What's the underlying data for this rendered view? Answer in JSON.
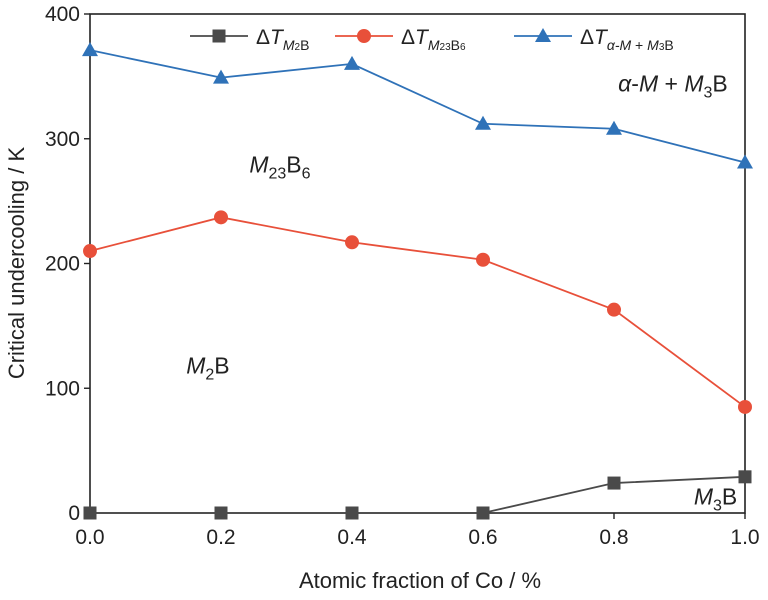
{
  "chart_data": {
    "type": "line",
    "xlabel": "Atomic fraction of Co / %",
    "ylabel": "Critical undercooling / K",
    "xlim": [
      0.0,
      1.0
    ],
    "ylim": [
      0,
      400
    ],
    "x_ticks": [
      "0.0",
      "0.2",
      "0.4",
      "0.6",
      "0.8",
      "1.0"
    ],
    "y_ticks": [
      "0",
      "100",
      "200",
      "300",
      "400"
    ],
    "grid": false,
    "legend_position": "top",
    "x": [
      0.0,
      0.2,
      0.4,
      0.6,
      0.8,
      1.0
    ],
    "series": [
      {
        "name": "ΔT_M2B",
        "legend": {
          "main": "ΔT",
          "sub": [
            {
              "t": "M",
              "italic": true
            },
            {
              "t": "2",
              "small": true
            },
            {
              "t": "B"
            }
          ]
        },
        "color": "#4a4a4a",
        "marker": "square",
        "values": [
          0,
          0,
          0,
          0,
          24,
          29
        ]
      },
      {
        "name": "ΔT_M23B6",
        "legend": {
          "main": "ΔT",
          "sub": [
            {
              "t": "M",
              "italic": true
            },
            {
              "t": "23",
              "small": true
            },
            {
              "t": "B"
            },
            {
              "t": "6",
              "small": true
            }
          ]
        },
        "color": "#e8503a",
        "marker": "circle",
        "values": [
          210,
          237,
          217,
          203,
          163,
          85
        ]
      },
      {
        "name": "ΔT_α-M + M3B",
        "legend": {
          "main": "ΔT",
          "sub": [
            {
              "t": "α-M",
              "italic": true
            },
            {
              "t": " + "
            },
            {
              "t": "M",
              "italic": true
            },
            {
              "t": "3",
              "small": true
            },
            {
              "t": "B"
            }
          ]
        },
        "color": "#2f72b8",
        "marker": "triangle",
        "values": [
          371,
          349,
          360,
          312,
          308,
          281
        ]
      }
    ],
    "annotations": [
      {
        "text": "α-M + M3B",
        "parts": [
          {
            "t": "α",
            "italic": true
          },
          {
            "t": "-"
          },
          {
            "t": "M",
            "italic": true
          },
          {
            "t": " + "
          },
          {
            "t": "M",
            "italic": true
          },
          {
            "t": "3",
            "sub": true
          },
          {
            "t": "B"
          }
        ],
        "x": 0.89,
        "y": 338
      },
      {
        "text": "M23B6",
        "parts": [
          {
            "t": "M",
            "italic": true
          },
          {
            "t": "23",
            "sub": true
          },
          {
            "t": "B"
          },
          {
            "t": "6",
            "sub": true
          }
        ],
        "x": 0.29,
        "y": 273
      },
      {
        "text": "M2B",
        "parts": [
          {
            "t": "M",
            "italic": true
          },
          {
            "t": "2",
            "sub": true
          },
          {
            "t": "B"
          }
        ],
        "x": 0.18,
        "y": 112
      },
      {
        "text": "M3B",
        "parts": [
          {
            "t": "M",
            "italic": true
          },
          {
            "t": "3",
            "sub": true
          },
          {
            "t": "B"
          }
        ],
        "x": 0.955,
        "y": 7
      }
    ]
  }
}
